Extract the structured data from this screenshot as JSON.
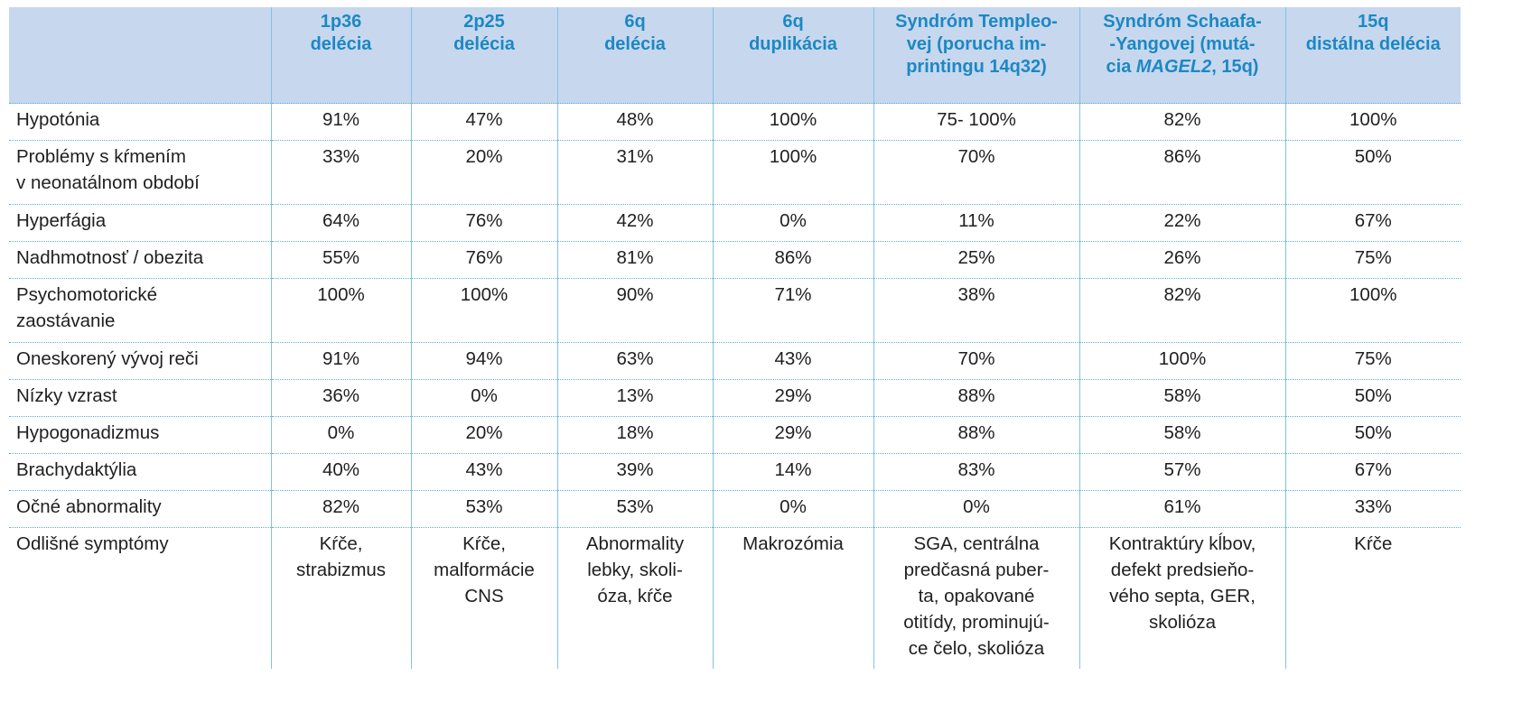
{
  "table": {
    "header": [
      {
        "lines": [
          ""
        ]
      },
      {
        "lines": [
          "1p36",
          "delécia"
        ]
      },
      {
        "lines": [
          "2p25",
          "delécia"
        ]
      },
      {
        "lines": [
          "6q",
          "delécia"
        ]
      },
      {
        "lines": [
          "6q",
          "duplikácia"
        ]
      },
      {
        "lines": [
          "Syndróm Templeo-",
          "vej (porucha im-",
          "printingu 14q32)"
        ]
      },
      {
        "lines_pre": [
          "Syndróm Schaafa-",
          "-Yangovej (mutá-"
        ],
        "line3_pre": "cia ",
        "line3_em": "MAGEL2",
        "line3_post": ", 15q)"
      },
      {
        "lines": [
          "15q",
          "distálna delécia"
        ]
      }
    ],
    "rows": [
      {
        "label": [
          "Hypotónia"
        ],
        "cells": [
          "91%",
          "47%",
          "48%",
          "100%",
          "75- 100%",
          "82%",
          "100%"
        ]
      },
      {
        "label": [
          "Problémy s kŕmením",
          "v neonatálnom období"
        ],
        "cells": [
          "33%",
          "20%",
          "31%",
          "100%",
          "70%",
          "86%",
          "50%"
        ]
      },
      {
        "label": [
          "Hyperfágia"
        ],
        "cells": [
          "64%",
          "76%",
          "42%",
          "0%",
          "11%",
          "22%",
          "67%"
        ]
      },
      {
        "label": [
          "Nadhmotnosť / obezita"
        ],
        "cells": [
          "55%",
          "76%",
          "81%",
          "86%",
          "25%",
          "26%",
          "75%"
        ]
      },
      {
        "label": [
          "Psychomotorické",
          "zaostávanie"
        ],
        "cells": [
          "100%",
          "100%",
          "90%",
          "71%",
          "38%",
          "82%",
          "100%"
        ]
      },
      {
        "label": [
          "Oneskorený vývoj reči"
        ],
        "cells": [
          "91%",
          "94%",
          "63%",
          "43%",
          "70%",
          "100%",
          "75%"
        ]
      },
      {
        "label": [
          "Nízky vzrast"
        ],
        "cells": [
          "36%",
          "0%",
          "13%",
          "29%",
          "88%",
          "58%",
          "50%"
        ]
      },
      {
        "label": [
          "Hypogonadizmus"
        ],
        "cells": [
          "0%",
          "20%",
          "18%",
          "29%",
          "88%",
          "58%",
          "50%"
        ]
      },
      {
        "label": [
          "Brachydaktýlia"
        ],
        "cells": [
          "40%",
          "43%",
          "39%",
          "14%",
          "83%",
          "57%",
          "67%"
        ]
      },
      {
        "label": [
          "Očné abnormality"
        ],
        "cells": [
          "82%",
          "53%",
          "53%",
          "0%",
          "0%",
          "61%",
          "33%"
        ]
      }
    ],
    "last_row": {
      "label": [
        "Odlišné symptómy"
      ],
      "cells": [
        [
          "Kŕče,",
          "strabizmus"
        ],
        [
          "Kŕče,",
          "malformácie",
          "CNS"
        ],
        [
          "Abnormality",
          "lebky, skoli-",
          "óza, kŕče"
        ],
        [
          "Makrozómia"
        ],
        [
          "SGA, centrálna",
          "predčasná puber-",
          "ta, opakované",
          "otitídy, prominujú-",
          "ce čelo, skolióza"
        ],
        [
          "Kontraktúry kĺbov,",
          "defekt predsieňo-",
          "vého septa, GER,",
          "skolióza"
        ],
        [
          "Kŕče"
        ]
      ]
    }
  }
}
